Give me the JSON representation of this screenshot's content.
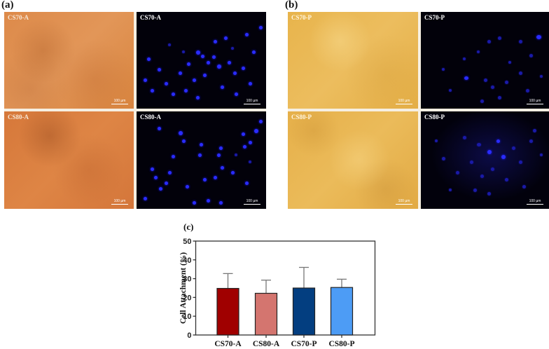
{
  "figure": {
    "panel_a": {
      "letter": "(a)",
      "images": [
        {
          "label": "CS70-A",
          "type": "brightfield",
          "scalebar": "100 µm"
        },
        {
          "label": "CS70-A",
          "type": "fluorescence-dapi",
          "scalebar": "100 µm"
        },
        {
          "label": "CS80-A",
          "type": "brightfield",
          "scalebar": "100 µm"
        },
        {
          "label": "CS80-A",
          "type": "fluorescence-dapi",
          "scalebar": "100 µm"
        }
      ]
    },
    "panel_b": {
      "letter": "(b)",
      "images": [
        {
          "label": "CS70-P",
          "type": "brightfield",
          "scalebar": "100 µm"
        },
        {
          "label": "CS70-P",
          "type": "fluorescence-dapi",
          "scalebar": "100 µm"
        },
        {
          "label": "CS80-P",
          "type": "brightfield",
          "scalebar": "100 µm"
        },
        {
          "label": "CS80-P",
          "type": "fluorescence-dapi",
          "scalebar": "100 µm"
        }
      ]
    },
    "panel_c": {
      "letter": "(c)"
    }
  },
  "chart_data": {
    "type": "bar",
    "title": "",
    "panel": "(c)",
    "categories": [
      "CS70-A",
      "CS80-A",
      "CS70-P",
      "CS80-P"
    ],
    "values": [
      24.8,
      22.2,
      25.0,
      25.3
    ],
    "error_upper": [
      32.7,
      29.2,
      36.0,
      29.7
    ],
    "errors": [
      7.9,
      7.0,
      11.0,
      4.4
    ],
    "colors": [
      "#a00000",
      "#d4756f",
      "#033e80",
      "#4d9cf5"
    ],
    "xlabel": "",
    "ylabel": "Cell Attachment (%)",
    "ylim": [
      0,
      50
    ],
    "yticks": [
      0,
      10,
      20,
      30,
      40,
      50
    ],
    "grid": false,
    "legend": null,
    "frame": "box"
  }
}
